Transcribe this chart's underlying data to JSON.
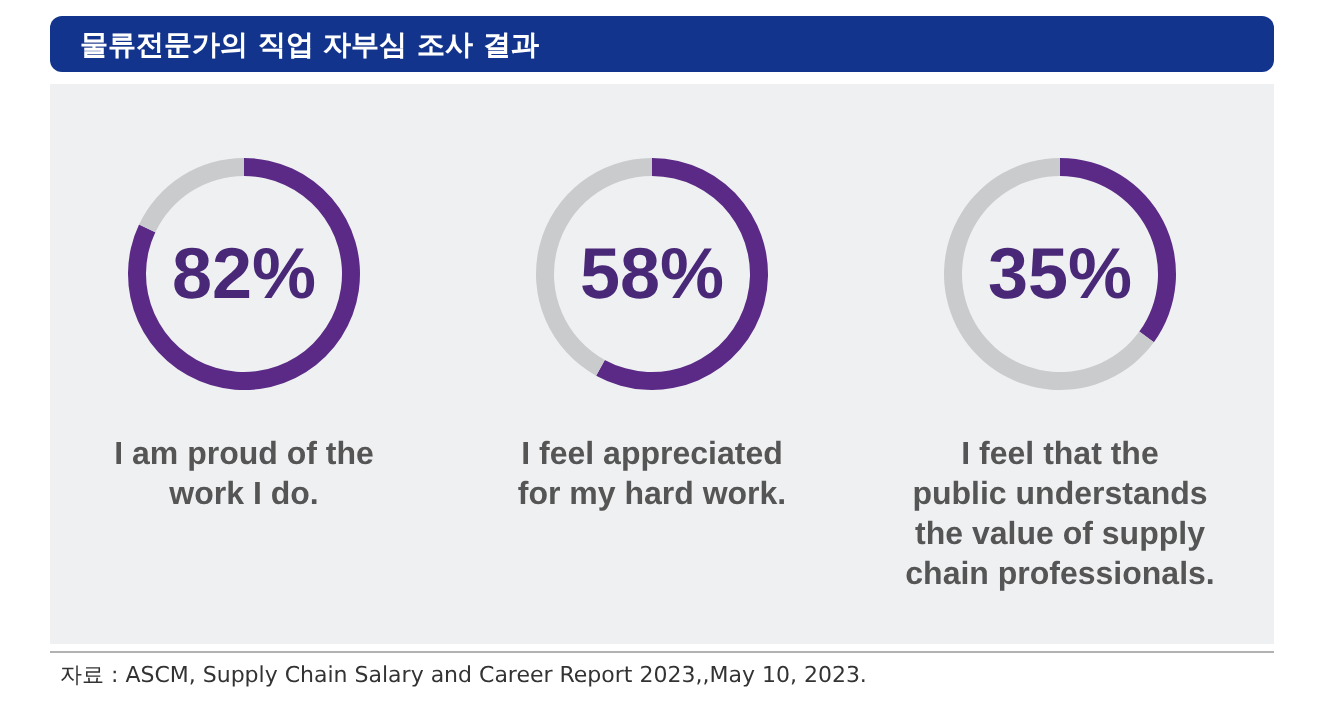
{
  "chart_data": [
    {
      "type": "other",
      "title": "물류전문가의 직업 자부심 조사 결과",
      "annotations": [
        "자료 : ASCM, Supply Chain Salary and Career Report 2023,,May 10, 2023."
      ]
    },
    {
      "type": "donut",
      "title": "I am proud of the work I do.",
      "categories": [
        null,
        null
      ],
      "values": [
        82,
        18
      ],
      "colors": [
        "#5b2a86",
        "#c9cbcd"
      ],
      "value_labels": [
        "82%",
        null
      ]
    },
    {
      "type": "donut",
      "title": "I feel appreciated for my hard work.",
      "categories": [
        null,
        null
      ],
      "values": [
        58,
        42
      ],
      "colors": [
        "#5b2a86",
        "#c9cbcd"
      ],
      "value_labels": [
        "58%",
        null
      ]
    },
    {
      "type": "donut",
      "title": "I feel that the public understands the value of supply chain professionals.",
      "categories": [
        null,
        null
      ],
      "values": [
        35,
        65
      ],
      "colors": [
        "#5b2a86",
        "#c9cbcd"
      ],
      "value_labels": [
        "35%",
        null
      ]
    }
  ]
}
